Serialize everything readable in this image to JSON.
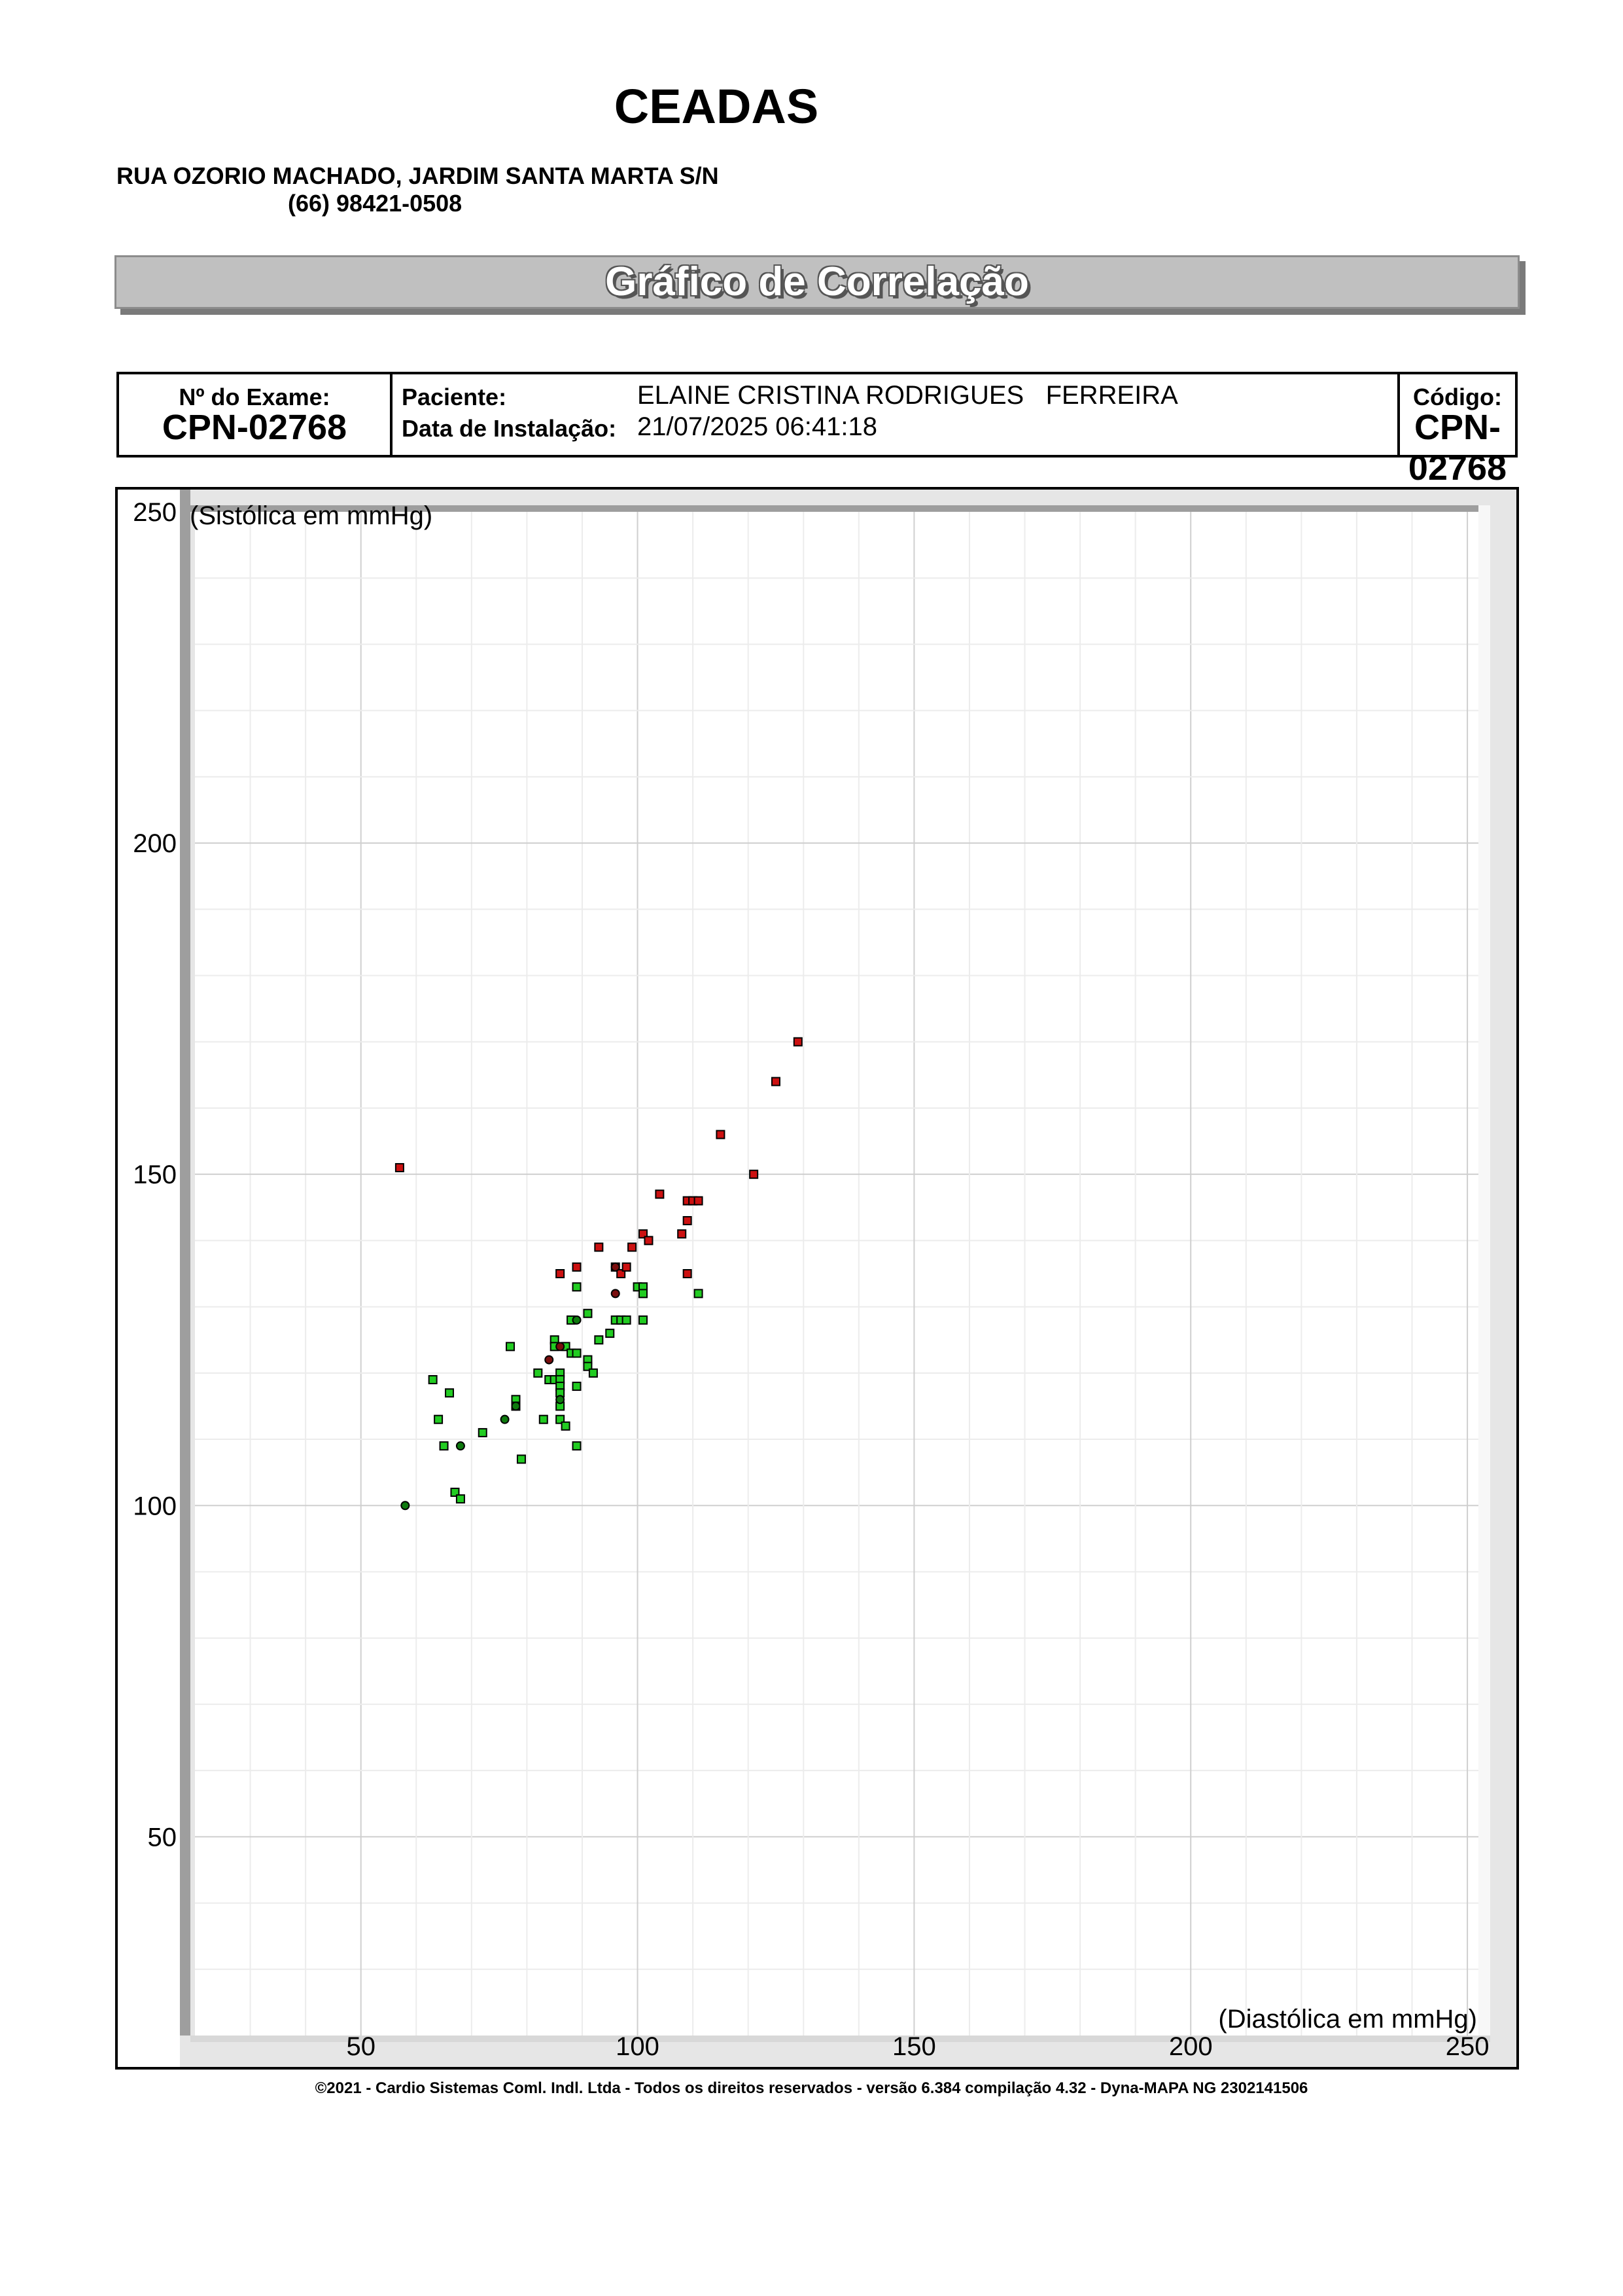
{
  "header": {
    "clinic_name": "CEADAS",
    "address": "RUA OZORIO MACHADO, JARDIM SANTA MARTA S/N",
    "phone": "(66) 98421-0508"
  },
  "report_title": "Gráfico de Correlação",
  "info": {
    "exam_label": "Nº do Exame:",
    "exam_number": "CPN-02768",
    "patient_label": "Paciente:",
    "patient_name": "ELAINE CRISTINA RODRIGUES   FERREIRA",
    "install_label": "Data de Instalação:",
    "install_date": "21/07/2025 06:41:18",
    "code_label": "Código:",
    "code_value": "CPN-02768"
  },
  "chart_data": {
    "type": "scatter",
    "ylabel": "(Sistólica em mmHg)",
    "xlabel": "(Diastólica em mmHg)",
    "xlim": [
      20,
      252
    ],
    "ylim": [
      20,
      250
    ],
    "x_ticks": [
      50,
      100,
      150,
      200,
      250
    ],
    "y_ticks": [
      50,
      100,
      150,
      200,
      250
    ],
    "grid": true,
    "colors": {
      "green": "#22cc22",
      "red": "#cc1111",
      "dark_green": "#0e7a0e",
      "dark_red": "#7a0e0e"
    },
    "series": [
      {
        "color": "green",
        "marker": "square",
        "points": [
          [
            63,
            119
          ],
          [
            64,
            113
          ],
          [
            65,
            109
          ],
          [
            66,
            117
          ],
          [
            67,
            102
          ],
          [
            68,
            101
          ],
          [
            72,
            111
          ],
          [
            77,
            124
          ],
          [
            78,
            116
          ],
          [
            78,
            115
          ],
          [
            79,
            107
          ],
          [
            82,
            120
          ],
          [
            83,
            113
          ],
          [
            84,
            119
          ],
          [
            85,
            125
          ],
          [
            85,
            124
          ],
          [
            85,
            119
          ],
          [
            86,
            120
          ],
          [
            86,
            119
          ],
          [
            86,
            118
          ],
          [
            86,
            117
          ],
          [
            86,
            115
          ],
          [
            86,
            113
          ],
          [
            87,
            124
          ],
          [
            87,
            112
          ],
          [
            88,
            128
          ],
          [
            88,
            123
          ],
          [
            89,
            133
          ],
          [
            89,
            123
          ],
          [
            89,
            118
          ],
          [
            89,
            109
          ],
          [
            91,
            129
          ],
          [
            91,
            122
          ],
          [
            91,
            121
          ],
          [
            92,
            120
          ],
          [
            93,
            125
          ],
          [
            95,
            126
          ],
          [
            96,
            128
          ],
          [
            97,
            128
          ],
          [
            98,
            128
          ],
          [
            100,
            133
          ],
          [
            101,
            133
          ],
          [
            101,
            132
          ],
          [
            101,
            128
          ],
          [
            111,
            132
          ]
        ]
      },
      {
        "color": "red",
        "marker": "square",
        "points": [
          [
            57,
            151
          ],
          [
            86,
            135
          ],
          [
            89,
            136
          ],
          [
            93,
            139
          ],
          [
            96,
            136
          ],
          [
            97,
            135
          ],
          [
            98,
            136
          ],
          [
            99,
            139
          ],
          [
            101,
            141
          ],
          [
            102,
            140
          ],
          [
            104,
            147
          ],
          [
            108,
            141
          ],
          [
            109,
            146
          ],
          [
            109,
            143
          ],
          [
            109,
            135
          ],
          [
            110,
            146
          ],
          [
            111,
            146
          ],
          [
            115,
            156
          ],
          [
            121,
            150
          ],
          [
            125,
            164
          ],
          [
            129,
            170
          ]
        ]
      },
      {
        "color": "dark_green",
        "marker": "circle",
        "points": [
          [
            58,
            100
          ],
          [
            68,
            109
          ],
          [
            76,
            113
          ],
          [
            78,
            115
          ],
          [
            86,
            116
          ],
          [
            89,
            128
          ]
        ]
      },
      {
        "color": "dark_red",
        "marker": "circle",
        "points": [
          [
            84,
            122
          ],
          [
            86,
            124
          ],
          [
            96,
            132
          ],
          [
            96,
            136
          ]
        ]
      }
    ]
  },
  "footer": "©2021 - Cardio Sistemas Coml. Indl. Ltda - Todos os direitos reservados - versão 6.384 compilação 4.32 - Dyna-MAPA NG 2302141506"
}
